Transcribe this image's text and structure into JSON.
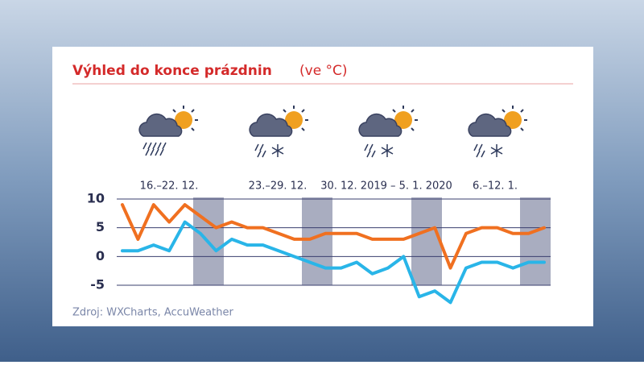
{
  "chart_data": {
    "type": "line",
    "title": "Výhled do konce prázdnin",
    "subtitle": "(ve °C)",
    "period_labels": [
      "16.–22. 12.",
      "23.–29. 12.",
      "30. 12. 2019 – 5. 1. 2020",
      "6.–12. 1."
    ],
    "source": "Zdroj: WXCharts, AccuWeather",
    "categories": [
      null,
      null,
      null,
      null,
      null,
      null,
      null,
      null,
      null,
      null,
      null,
      null,
      null,
      null,
      null,
      null,
      null,
      null,
      null,
      null,
      null,
      null,
      null,
      null,
      null,
      null,
      null,
      null
    ],
    "series": [
      {
        "color": "#f07020",
        "values": [
          9,
          3,
          9,
          6,
          9,
          7,
          5,
          6,
          5,
          5,
          4,
          3,
          3,
          4,
          4,
          4,
          3,
          3,
          3,
          4,
          5,
          -2,
          4,
          5,
          5,
          4,
          4,
          5
        ]
      },
      {
        "color": "#29b5e8",
        "values": [
          1,
          1,
          2,
          1,
          6,
          4,
          1,
          3,
          2,
          2,
          1,
          0,
          -1,
          -2,
          -2,
          -1,
          -3,
          -2,
          0,
          -7,
          -6,
          -8,
          -2,
          -1,
          -1,
          -2,
          -1,
          -1
        ]
      }
    ],
    "ylim": [
      -5,
      10
    ],
    "yticks": [
      -5,
      0,
      5,
      10
    ],
    "grid": true
  }
}
